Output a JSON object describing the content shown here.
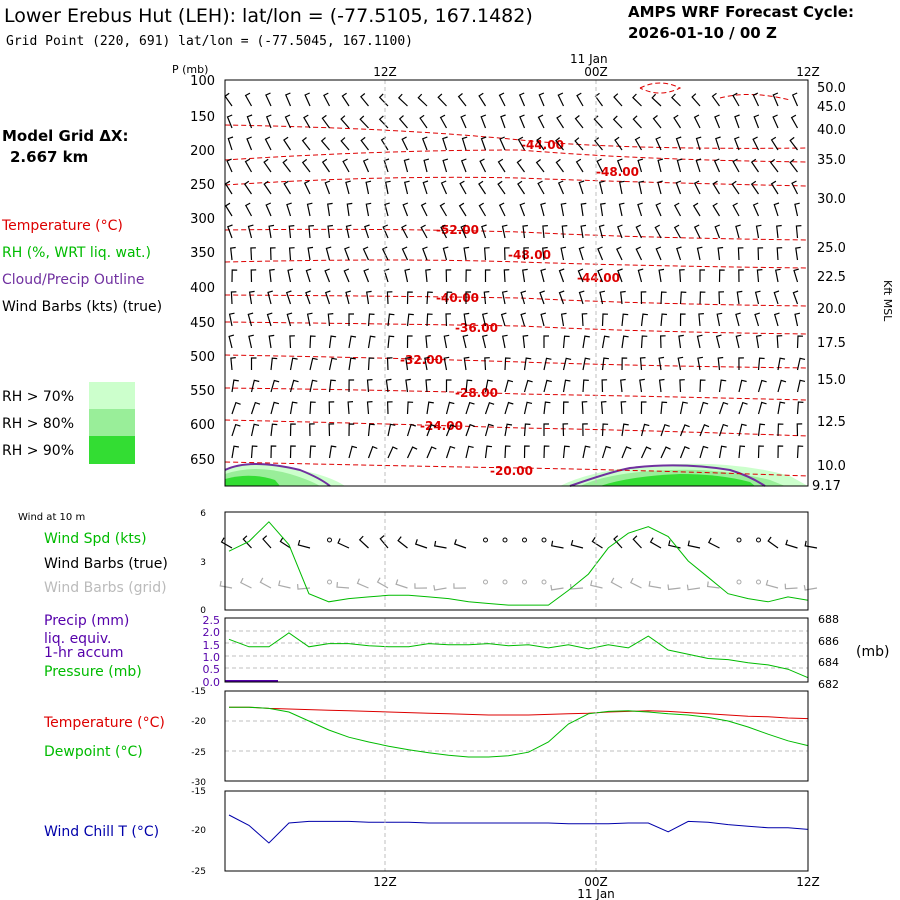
{
  "header": {
    "station_title": "Lower Erebus Hut (LEH):  lat/lon = (-77.5105, 167.1482)",
    "grid_point": "Grid Point (220, 691) lat/lon = (-77.5045, 167.1100)",
    "cycle_line1": "AMPS WRF Forecast Cycle:",
    "cycle_line2": "2026-01-10 / 00  Z"
  },
  "legend": {
    "model_grid_label": "Model Grid ΔX:",
    "model_grid_value": "2.667 km",
    "temperature": "Temperature (°C)",
    "rh": "RH (%, WRT liq. wat.)",
    "cloud": "Cloud/Precip Outline",
    "wind_barbs": "Wind Barbs (kts) (true)",
    "rh70": "RH > 70%",
    "rh80": "RH > 80%",
    "rh90": "RH > 90%",
    "wind_at_10m": "Wind at 10 m",
    "wind_spd": "Wind Spd (kts)",
    "wind_barbs_true": "Wind Barbs (true)",
    "wind_barbs_grid": "Wind Barbs (grid)",
    "precip": "Precip (mm)",
    "liq_equiv": "liq. equiv.",
    "hr_accum": "1-hr accum",
    "pressure": "Pressure (mb)",
    "pressure_unit": "(mb)",
    "temp2": "Temperature (°C)",
    "dewpoint": "Dewpoint (°C)",
    "windchill": "Wind Chill T (°C)"
  },
  "colors": {
    "temperature": "#dd0000",
    "rh": "#00bb00",
    "cloud": "#7030a0",
    "rh70": "#ccffcc",
    "rh80": "#99ee99",
    "rh90": "#33dd33",
    "windchill": "#0000aa",
    "precip": "#5500aa"
  },
  "chart_data": [
    {
      "type": "cross-section",
      "p_label": "P (mb)",
      "top_date": "11 Jan",
      "time_ticks": [
        "12Z",
        "00Z",
        "12Z"
      ],
      "pressure_ticks": [
        100,
        150,
        200,
        250,
        300,
        350,
        400,
        450,
        500,
        550,
        600,
        650
      ],
      "height_ticks": [
        "50.0",
        "45.0",
        "40.0",
        "35.0",
        "30.0",
        "25.0",
        "22.5",
        "20.0",
        "17.5",
        "15.0",
        "12.5",
        "10.0",
        "9.17"
      ],
      "height_label": "Kft MSL",
      "isotherm_labels": [
        "-44.00",
        "-48.00",
        "-52.00",
        "-48.00",
        "-44.00",
        "-40.00",
        "-36.00",
        "-32.00",
        "-28.00",
        "-24.00",
        "-20.00"
      ]
    },
    {
      "type": "line",
      "name": "wind_10m",
      "y_ticks": [
        6,
        3,
        0
      ],
      "ylim": [
        0,
        6
      ],
      "wind_speed": [
        3.6,
        4.2,
        5.4,
        4.0,
        1.0,
        0.5,
        0.7,
        0.8,
        0.9,
        0.9,
        0.8,
        0.7,
        0.5,
        0.4,
        0.3,
        0.3,
        0.3,
        1.2,
        2.2,
        3.8,
        4.7,
        5.1,
        4.5,
        3.0,
        2.0,
        1.0,
        0.7,
        0.5,
        0.8,
        0.6
      ]
    },
    {
      "type": "line",
      "name": "precip_pressure",
      "precip_ticks": [
        "2.5",
        "2.0",
        "1.5",
        "1.0",
        "0.5",
        "0.0"
      ],
      "pressure_ticks": [
        "688",
        "686",
        "684",
        "682"
      ],
      "pressure_ylim": [
        682,
        688
      ],
      "pressure": [
        686.0,
        685.3,
        685.3,
        686.6,
        685.3,
        685.6,
        685.6,
        685.4,
        685.3,
        685.3,
        685.6,
        685.5,
        685.5,
        685.6,
        685.4,
        685.5,
        685.2,
        685.5,
        685.1,
        685.5,
        685.2,
        686.3,
        685.0,
        684.6,
        684.2,
        684.1,
        683.8,
        683.6,
        683.2,
        682.4
      ]
    },
    {
      "type": "line",
      "name": "temp_dewpoint",
      "y_ticks": [
        -15,
        -20,
        -25,
        -30
      ],
      "ylim": [
        -30,
        -15
      ],
      "temperature": [
        -17.7,
        -17.7,
        -17.9,
        -18.0,
        -18.1,
        -18.2,
        -18.3,
        -18.4,
        -18.5,
        -18.6,
        -18.7,
        -18.8,
        -18.9,
        -19.0,
        -19.0,
        -19.0,
        -18.9,
        -18.8,
        -18.7,
        -18.5,
        -18.4,
        -18.3,
        -18.4,
        -18.6,
        -18.8,
        -19.0,
        -19.2,
        -19.3,
        -19.5,
        -19.6
      ],
      "dewpoint": [
        -17.7,
        -17.7,
        -17.9,
        -18.5,
        -20.0,
        -21.5,
        -22.7,
        -23.5,
        -24.2,
        -24.8,
        -25.3,
        -25.7,
        -26.0,
        -26.0,
        -25.8,
        -25.2,
        -23.5,
        -20.5,
        -18.8,
        -18.4,
        -18.3,
        -18.5,
        -18.8,
        -19.0,
        -19.4,
        -20.0,
        -21.0,
        -22.2,
        -23.3,
        -24.1
      ]
    },
    {
      "type": "line",
      "name": "windchill",
      "y_ticks": [
        -15,
        -20,
        -25
      ],
      "ylim": [
        -25,
        -15
      ],
      "windchill": [
        -18.0,
        -19.3,
        -21.5,
        -19.0,
        -18.8,
        -18.8,
        -18.8,
        -18.9,
        -18.9,
        -18.9,
        -19.0,
        -19.0,
        -19.0,
        -19.0,
        -19.0,
        -19.0,
        -19.0,
        -19.1,
        -19.1,
        -19.1,
        -19.0,
        -19.0,
        -20.1,
        -18.8,
        -18.9,
        -19.2,
        -19.4,
        -19.6,
        -19.6,
        -19.8
      ]
    }
  ]
}
